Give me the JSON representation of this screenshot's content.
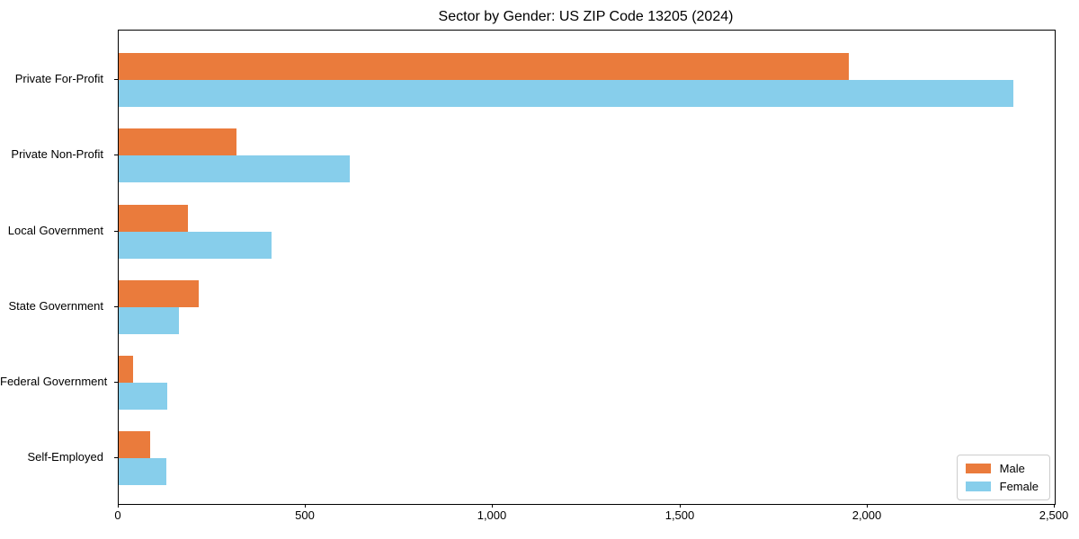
{
  "chart_data": {
    "type": "bar",
    "orientation": "horizontal",
    "title": "Sector by Gender: US ZIP Code 13205 (2024)",
    "categories": [
      "Private For-Profit",
      "Private Non-Profit",
      "Local Government",
      "State Government",
      "Federal Government",
      "Self-Employed"
    ],
    "series": [
      {
        "name": "Male",
        "color": "#EA7B3C",
        "values": [
          1950,
          315,
          185,
          214,
          38,
          84
        ]
      },
      {
        "name": "Female",
        "color": "#87CEEB",
        "values": [
          2390,
          617,
          408,
          161,
          130,
          127
        ]
      }
    ],
    "xlabel": "",
    "ylabel": "",
    "xlim": [
      0,
      2500
    ],
    "xticks": [
      0,
      500,
      1000,
      1500,
      2000,
      2500
    ],
    "xtick_labels": [
      "0",
      "500",
      "1,000",
      "1,500",
      "2,000",
      "2,500"
    ],
    "grid": false,
    "legend_position": "lower right",
    "axis_color": "#000000",
    "background_color": "#ffffff"
  }
}
